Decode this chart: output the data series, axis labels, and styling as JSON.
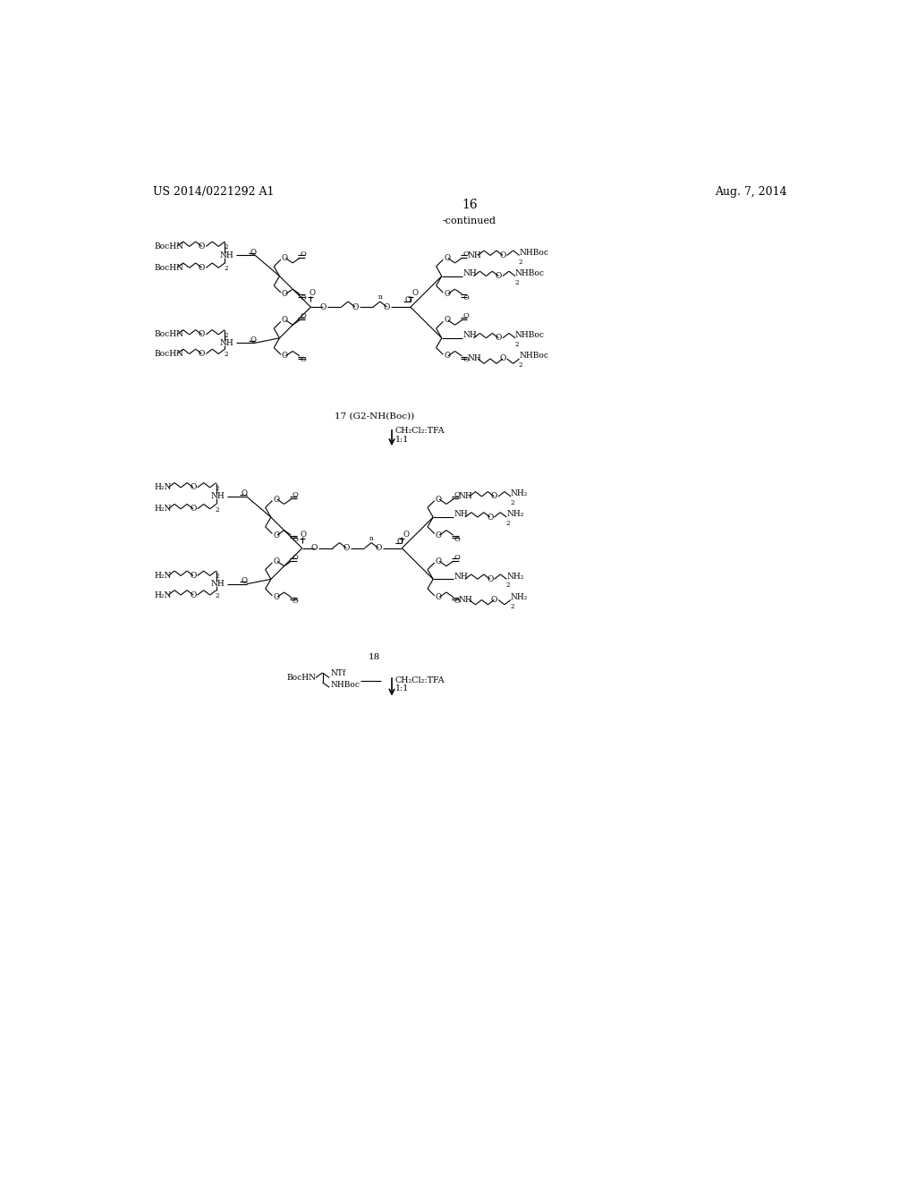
{
  "background_color": "#ffffff",
  "header_left": "US 2014/0221292 A1",
  "header_right": "Aug. 7, 2014",
  "page_number": "16",
  "continued_text": "-continued",
  "compound_17_label": "17 (G2-NH(Boc))",
  "reaction_17_reagent": "CH₂Cl₂:TFA",
  "reaction_17_ratio": "1:1",
  "compound_18_label": "18",
  "reaction_18_reagent2": "CH₂Cl₂:TFA",
  "reaction_18_ratio": "1:1",
  "text_color": "#000000"
}
